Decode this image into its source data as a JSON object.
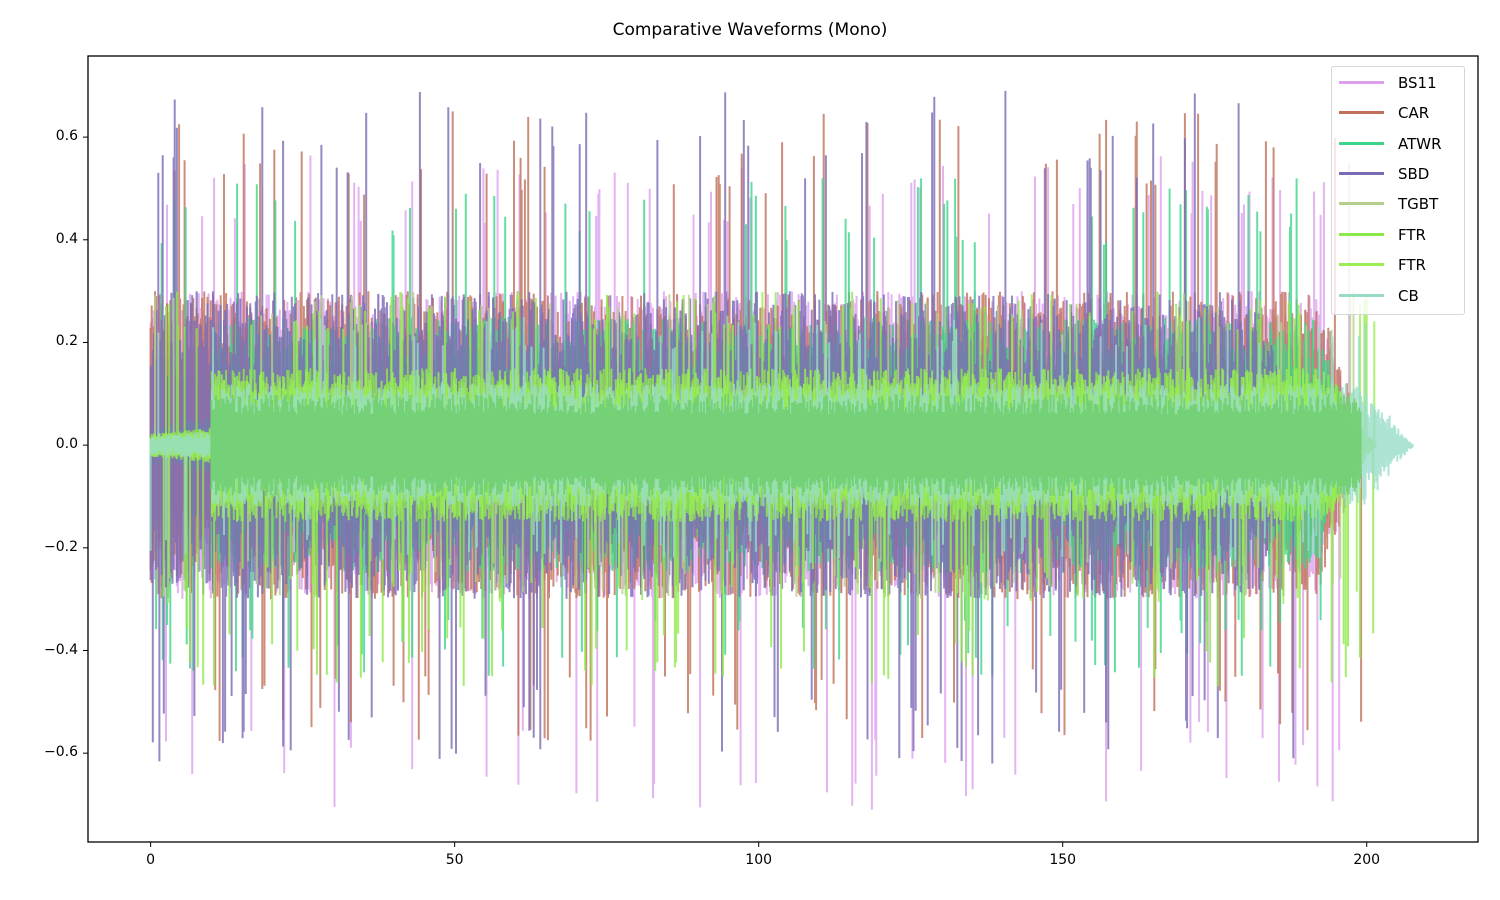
{
  "chart_data": {
    "type": "line",
    "title": "Comparative Waveforms (Mono)",
    "xlabel": "",
    "ylabel": "",
    "xlim": [
      -10.3,
      218.3
    ],
    "ylim": [
      -0.773,
      0.758
    ],
    "xticks": [
      0,
      50,
      100,
      150,
      200
    ],
    "xtick_labels": [
      "0",
      "50",
      "100",
      "150",
      "200"
    ],
    "yticks": [
      -0.6,
      -0.4,
      -0.2,
      0.0,
      0.2,
      0.4,
      0.6
    ],
    "ytick_labels": [
      "−0.6",
      "−0.4",
      "−0.2",
      "0.0",
      "0.2",
      "0.4",
      "0.6"
    ],
    "grid": false,
    "legend_position": "upper right",
    "series": [
      {
        "name": "BS11",
        "color": "#dda0ee",
        "alpha": 0.8,
        "duration": 199.5,
        "typical_amplitude": 0.3,
        "max": 0.57,
        "min": -0.71,
        "min_at": 118.7,
        "early_peak": 0.54
      },
      {
        "name": "CAR",
        "color": "#c0705a",
        "alpha": 0.8,
        "duration": 200.0,
        "typical_amplitude": 0.3,
        "max": 0.65,
        "max_at": 49.6,
        "min": -0.58
      },
      {
        "name": "ATWR",
        "color": "#3ed489",
        "alpha": 0.8,
        "duration": 199.0,
        "typical_amplitude": 0.25,
        "max": 0.52,
        "max_at": 110.5,
        "min": -0.45
      },
      {
        "name": "SBD",
        "color": "#7b6bb5",
        "alpha": 0.8,
        "duration": 190.0,
        "typical_amplitude": 0.3,
        "max": 0.69,
        "max_at": 140.5,
        "min": -0.62,
        "min_at": 138.5
      },
      {
        "name": "TGBT",
        "color": "#b5cf8a",
        "alpha": 0.8,
        "duration": 199.0,
        "typical_amplitude": 0.12,
        "max": 0.3,
        "min": -0.3
      },
      {
        "name": "FTR",
        "color": "#8fe84a",
        "alpha": 0.8,
        "duration": 201.5,
        "typical_amplitude": 0.15,
        "max": 0.3,
        "min": -0.47,
        "min_at": 175.5
      },
      {
        "name": "FTR",
        "color": "#99ee55",
        "alpha": 0.8,
        "duration": 201.5,
        "typical_amplitude": 0.15,
        "max": 0.3,
        "min": -0.31
      },
      {
        "name": "CB",
        "color": "#98dcc8",
        "alpha": 0.8,
        "duration": 207.7,
        "typical_amplitude": 0.12,
        "max": 0.25,
        "min": -0.23
      }
    ]
  },
  "legend": {
    "items": [
      {
        "label": "BS11",
        "color": "#dda0ee"
      },
      {
        "label": "CAR",
        "color": "#c0705a"
      },
      {
        "label": "ATWR",
        "color": "#3ed489"
      },
      {
        "label": "SBD",
        "color": "#7b6bb5"
      },
      {
        "label": "TGBT",
        "color": "#b5cf8a"
      },
      {
        "label": "FTR",
        "color": "#8fe84a"
      },
      {
        "label": "FTR",
        "color": "#99ee55"
      },
      {
        "label": "CB",
        "color": "#98dcc8"
      }
    ]
  },
  "center_band_color": "#72d072"
}
